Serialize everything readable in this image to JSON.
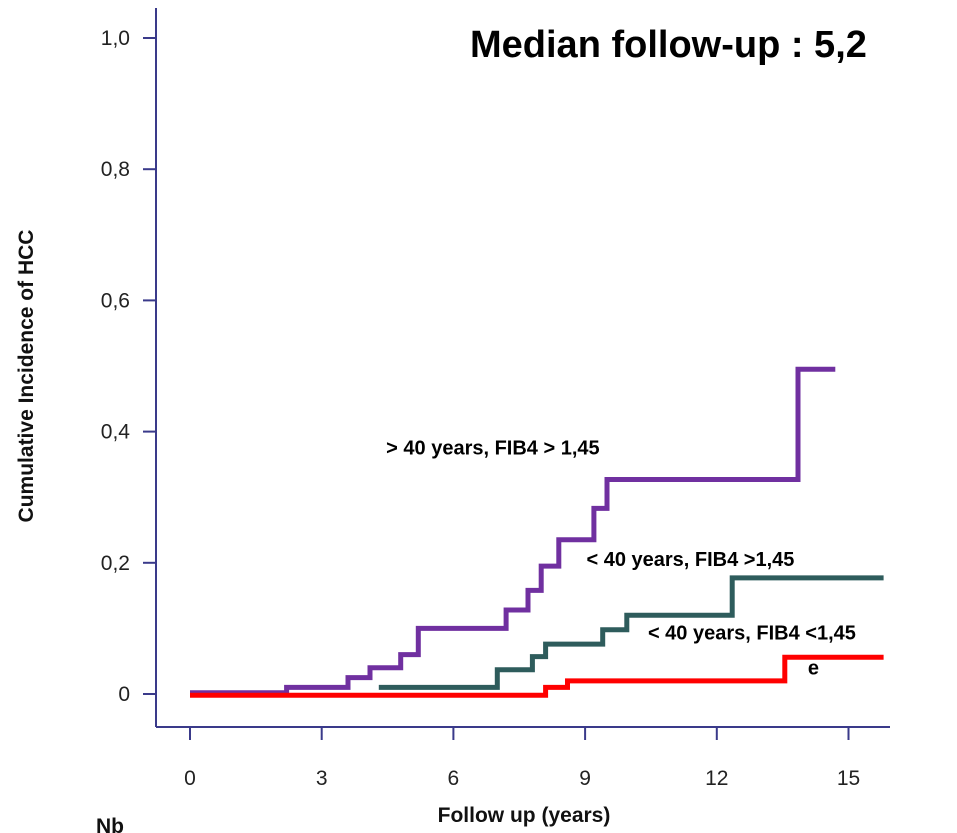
{
  "chart_data": {
    "type": "line",
    "step": true,
    "title": "Median follow-up : 5,2",
    "xlabel": "Follow up (years)",
    "ylabel": "Cumulative  Incidence  of HCC",
    "xlim": [
      -0.8,
      15.9
    ],
    "ylim": [
      -0.05,
      1.05
    ],
    "x_ticks": [
      0,
      3,
      6,
      9,
      12,
      15
    ],
    "y_ticks": [
      1.0,
      0.8,
      0.6,
      0.4,
      0.2,
      0
    ],
    "x_tick_labels": [
      "0",
      "3",
      "6",
      "9",
      "12",
      "15"
    ],
    "y_tick_labels": [
      "1,0",
      "0,8",
      "0,6",
      "0,4",
      "0,2",
      "0"
    ],
    "grid": false,
    "series": [
      {
        "name": "> 40 years, FIB4 > 1,45",
        "color": "#7030a0",
        "points": [
          [
            0,
            0.002
          ],
          [
            2.2,
            0.002
          ],
          [
            2.2,
            0.01
          ],
          [
            3.6,
            0.01
          ],
          [
            3.6,
            0.025
          ],
          [
            4.1,
            0.025
          ],
          [
            4.1,
            0.04
          ],
          [
            4.8,
            0.04
          ],
          [
            4.8,
            0.06
          ],
          [
            5.2,
            0.06
          ],
          [
            5.2,
            0.1
          ],
          [
            7.2,
            0.1
          ],
          [
            7.2,
            0.128
          ],
          [
            7.7,
            0.128
          ],
          [
            7.7,
            0.158
          ],
          [
            8.0,
            0.158
          ],
          [
            8.0,
            0.195
          ],
          [
            8.4,
            0.195
          ],
          [
            8.4,
            0.235
          ],
          [
            9.2,
            0.235
          ],
          [
            9.2,
            0.283
          ],
          [
            9.5,
            0.283
          ],
          [
            9.5,
            0.327
          ],
          [
            13.85,
            0.327
          ],
          [
            13.85,
            0.495
          ],
          [
            14.7,
            0.495
          ]
        ]
      },
      {
        "name": "< 40 years, FIB4 >1,45",
        "color": "#2e5c5c",
        "points": [
          [
            4.3,
            0.01
          ],
          [
            7.0,
            0.01
          ],
          [
            7.0,
            0.037
          ],
          [
            7.8,
            0.037
          ],
          [
            7.8,
            0.057
          ],
          [
            8.1,
            0.057
          ],
          [
            8.1,
            0.076
          ],
          [
            9.4,
            0.076
          ],
          [
            9.4,
            0.098
          ],
          [
            9.95,
            0.098
          ],
          [
            9.95,
            0.12
          ],
          [
            12.35,
            0.12
          ],
          [
            12.35,
            0.177
          ],
          [
            15.8,
            0.177
          ]
        ]
      },
      {
        "name": "< 40 years, FIB4 <1,45",
        "color": "#ff0000",
        "points": [
          [
            0,
            -0.002
          ],
          [
            8.1,
            -0.002
          ],
          [
            8.1,
            0.01
          ],
          [
            8.6,
            0.01
          ],
          [
            8.6,
            0.02
          ],
          [
            13.55,
            0.02
          ],
          [
            13.55,
            0.056
          ],
          [
            15.8,
            0.056
          ]
        ]
      }
    ],
    "annotations": [
      {
        "text": "> 40 years, FIB4 > 1,45",
        "x": 6.9,
        "y": 0.365
      },
      {
        "text": "< 40 years, FIB4 >1,45",
        "x": 11.4,
        "y": 0.195
      },
      {
        "text": "< 40 years, FIB4 <1,45",
        "x": 12.8,
        "y": 0.083
      },
      {
        "text": "e",
        "x": 14.2,
        "y": 0.03
      }
    ]
  },
  "footer": {
    "nb_label": "Nb"
  }
}
